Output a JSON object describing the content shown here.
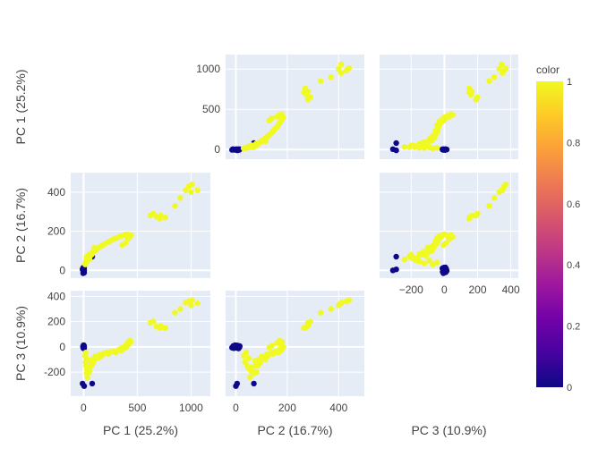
{
  "chart_data": {
    "type": "scatter",
    "subtype": "scatter-matrix",
    "dimensions": [
      "PC 1 (25.2%)",
      "PC 2 (16.7%)",
      "PC 3 (10.9%)"
    ],
    "axis_ranges": {
      "PC 1 (25.2%)": [
        -120,
        1180
      ],
      "PC 2 (16.7%)": [
        -40,
        500
      ],
      "PC 3 (10.9%)": [
        -390,
        445
      ]
    },
    "ticks": {
      "PC 1 (25.2%)": [
        0,
        500,
        1000
      ],
      "PC 2 (16.7%)": [
        0,
        200,
        400
      ],
      "PC 3 (10.9%)": [
        -200,
        0,
        200,
        400
      ]
    },
    "diagonal_visible": false,
    "grid": true,
    "plot_background": "#e5ecf6",
    "colorbar": {
      "title": "color",
      "ticks": [
        "0",
        "0.2",
        "0.4",
        "0.6",
        "0.8",
        "1"
      ],
      "range": [
        0,
        1
      ],
      "colorscale": [
        "#0d0887",
        "#46039f",
        "#7201a8",
        "#9c179e",
        "#bd3786",
        "#d8576b",
        "#ed7953",
        "#fb9f3a",
        "#fdca26",
        "#f0f921"
      ]
    },
    "series": [
      {
        "color_value": 0,
        "color": "#0d0887",
        "points": [
          [
            0,
            0,
            0
          ],
          [
            -3,
            -5,
            5
          ],
          [
            3,
            5,
            -8
          ],
          [
            -5,
            12,
            3
          ],
          [
            5,
            -12,
            -5
          ],
          [
            2,
            8,
            10
          ],
          [
            -2,
            -8,
            -10
          ],
          [
            4,
            15,
            6
          ],
          [
            -4,
            -15,
            -6
          ],
          [
            1,
            3,
            12
          ],
          [
            0,
            -3,
            14
          ],
          [
            3,
            10,
            -12
          ],
          [
            -1,
            14,
            -3
          ],
          [
            2,
            -10,
            8
          ],
          [
            80,
            70,
            -290
          ],
          [
            5,
            0,
            -310
          ],
          [
            -10,
            5,
            -290
          ]
        ]
      },
      {
        "color_value": 1,
        "color": "#f0f921",
        "points": [
          [
            20,
            40,
            -45
          ],
          [
            15,
            30,
            -70
          ],
          [
            25,
            50,
            -90
          ],
          [
            18,
            35,
            -120
          ],
          [
            22,
            45,
            -150
          ],
          [
            30,
            60,
            -180
          ],
          [
            28,
            70,
            -210
          ],
          [
            35,
            55,
            -240
          ],
          [
            50,
            80,
            -200
          ],
          [
            45,
            65,
            -160
          ],
          [
            70,
            85,
            -150
          ],
          [
            60,
            75,
            -110
          ],
          [
            90,
            95,
            -125
          ],
          [
            80,
            90,
            -100
          ],
          [
            120,
            110,
            -90
          ],
          [
            110,
            100,
            -75
          ],
          [
            150,
            120,
            -60
          ],
          [
            140,
            115,
            -85
          ],
          [
            180,
            130,
            -55
          ],
          [
            170,
            125,
            -70
          ],
          [
            210,
            140,
            -45
          ],
          [
            250,
            150,
            -40
          ],
          [
            230,
            145,
            -55
          ],
          [
            280,
            160,
            -35
          ],
          [
            300,
            165,
            -45
          ],
          [
            330,
            170,
            -20
          ],
          [
            350,
            175,
            -30
          ],
          [
            380,
            180,
            -10
          ],
          [
            400,
            185,
            0
          ],
          [
            420,
            175,
            20
          ],
          [
            440,
            180,
            40
          ],
          [
            430,
            170,
            50
          ],
          [
            410,
            160,
            30
          ],
          [
            390,
            140,
            10
          ],
          [
            360,
            130,
            -5
          ],
          [
            100,
            115,
            -100
          ],
          [
            75,
            80,
            -140
          ],
          [
            55,
            60,
            -190
          ],
          [
            40,
            50,
            -170
          ],
          [
            620,
            280,
            190
          ],
          [
            650,
            290,
            200
          ],
          [
            680,
            275,
            160
          ],
          [
            710,
            265,
            150
          ],
          [
            760,
            270,
            150
          ],
          [
            720,
            280,
            165
          ],
          [
            850,
            330,
            270
          ],
          [
            900,
            370,
            300
          ],
          [
            950,
            410,
            350
          ],
          [
            980,
            430,
            360
          ],
          [
            1010,
            440,
            370
          ],
          [
            1060,
            410,
            345
          ],
          [
            1000,
            400,
            330
          ]
        ]
      }
    ]
  }
}
